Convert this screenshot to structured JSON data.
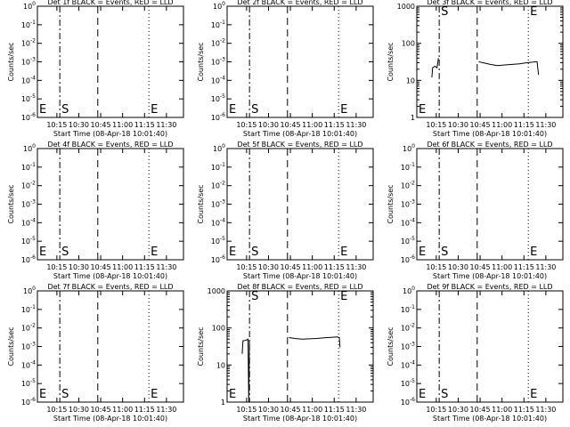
{
  "figure": {
    "xlabel": "Start Time (08-Apr-18 10:01:40)",
    "time_ticks": [
      "10:15",
      "10:30",
      "10:45",
      "11:00",
      "11:15",
      "11:30"
    ],
    "ylabel": "Counts/sec"
  },
  "chart_data": [
    {
      "type": "line",
      "title": "Det 1f BLACK = Events, RED = LLD",
      "xlabel": "Start Time (08-Apr-18 10:01:40)",
      "ylabel": "Counts/sec",
      "yscale": "log",
      "xlim": [
        "10:01:40",
        "11:41:40"
      ],
      "x_ticks": [
        "10:15",
        "10:30",
        "10:45",
        "11:00",
        "11:15",
        "11:30"
      ],
      "y_ticks": [
        "10^0",
        "10^-1",
        "10^-2",
        "10^-3",
        "10^-4",
        "10^-5",
        "10^-6"
      ],
      "markers": [
        {
          "label": "E",
          "time": "10:01:40",
          "style": "solid"
        },
        {
          "label": "S",
          "time": "10:17:00",
          "style": "dashdot"
        },
        {
          "label": "",
          "time": "10:43:00",
          "style": "dashed"
        },
        {
          "label": "E",
          "time": "11:18:00",
          "style": "dotted"
        },
        {
          "label": "",
          "time": "11:41:40",
          "style": "dotted"
        }
      ],
      "series": []
    },
    {
      "type": "line",
      "title": "Det 2f BLACK = Events, RED = LLD",
      "xlabel": "Start Time (08-Apr-18 10:01:40)",
      "ylabel": "Counts/sec",
      "yscale": "log",
      "xlim": [
        "10:01:40",
        "11:41:40"
      ],
      "x_ticks": [
        "10:15",
        "10:30",
        "10:45",
        "11:00",
        "11:15",
        "11:30"
      ],
      "y_ticks": [
        "10^0",
        "10^-1",
        "10^-2",
        "10^-3",
        "10^-4",
        "10^-5",
        "10^-6"
      ],
      "markers": [
        {
          "label": "E",
          "time": "10:01:40",
          "style": "solid"
        },
        {
          "label": "S",
          "time": "10:17:00",
          "style": "dashdot"
        },
        {
          "label": "",
          "time": "10:43:00",
          "style": "dashed"
        },
        {
          "label": "E",
          "time": "11:18:00",
          "style": "dotted"
        },
        {
          "label": "",
          "time": "11:41:40",
          "style": "dotted"
        }
      ],
      "series": []
    },
    {
      "type": "line",
      "title": "Det 3f BLACK = Events, RED = LLD",
      "xlabel": "Start Time (08-Apr-18 10:01:40)",
      "ylabel": "Counts/sec",
      "yscale": "log",
      "xlim": [
        "10:01:40",
        "11:41:40"
      ],
      "x_ticks": [
        "10:15",
        "10:30",
        "10:45",
        "11:00",
        "11:15",
        "11:30"
      ],
      "y_ticks": [
        "1000",
        "100",
        "10",
        "1"
      ],
      "markers": [
        {
          "label": "E",
          "time": "10:01:40",
          "style": "solid"
        },
        {
          "label": "S",
          "time": "10:17:00",
          "style": "dashdot"
        },
        {
          "label": "",
          "time": "10:43:00",
          "style": "dashed"
        },
        {
          "label": "E",
          "time": "11:18:00",
          "style": "dotted"
        },
        {
          "label": "",
          "time": "11:41:40",
          "style": "dotted"
        }
      ],
      "series": [
        {
          "color": "#000000",
          "x": [
            "10:12:00",
            "10:12:30",
            "10:14:00",
            "10:15:30",
            "10:16:30"
          ],
          "y": [
            12,
            22,
            24,
            22,
            40
          ]
        },
        {
          "color": "#000000",
          "x": [
            "10:44:00",
            "10:47:00",
            "10:52:00",
            "10:57:00",
            "11:02:00",
            "11:07:00",
            "11:12:00",
            "11:17:00",
            "11:21:00",
            "11:24:00",
            "11:25:00"
          ],
          "y": [
            32,
            30,
            27,
            25,
            26,
            27,
            28,
            30,
            31,
            32,
            14
          ]
        }
      ]
    },
    {
      "type": "line",
      "title": "Det 4f BLACK = Events, RED = LLD",
      "xlabel": "Start Time (08-Apr-18 10:01:40)",
      "ylabel": "Counts/sec",
      "yscale": "log",
      "xlim": [
        "10:01:40",
        "11:41:40"
      ],
      "x_ticks": [
        "10:15",
        "10:30",
        "10:45",
        "11:00",
        "11:15",
        "11:30"
      ],
      "y_ticks": [
        "10^0",
        "10^-1",
        "10^-2",
        "10^-3",
        "10^-4",
        "10^-5",
        "10^-6"
      ],
      "markers": [
        {
          "label": "E",
          "time": "10:01:40",
          "style": "solid"
        },
        {
          "label": "S",
          "time": "10:17:00",
          "style": "dashdot"
        },
        {
          "label": "",
          "time": "10:43:00",
          "style": "dashed"
        },
        {
          "label": "E",
          "time": "11:18:00",
          "style": "dotted"
        },
        {
          "label": "",
          "time": "11:41:40",
          "style": "dotted"
        }
      ],
      "series": []
    },
    {
      "type": "line",
      "title": "Det 5f BLACK = Events, RED = LLD",
      "xlabel": "Start Time (08-Apr-18 10:01:40)",
      "ylabel": "Counts/sec",
      "yscale": "log",
      "xlim": [
        "10:01:40",
        "11:41:40"
      ],
      "x_ticks": [
        "10:15",
        "10:30",
        "10:45",
        "11:00",
        "11:15",
        "11:30"
      ],
      "y_ticks": [
        "10^0",
        "10^-1",
        "10^-2",
        "10^-3",
        "10^-4",
        "10^-5",
        "10^-6"
      ],
      "markers": [
        {
          "label": "E",
          "time": "10:01:40",
          "style": "solid"
        },
        {
          "label": "S",
          "time": "10:17:00",
          "style": "dashdot"
        },
        {
          "label": "",
          "time": "10:43:00",
          "style": "dashed"
        },
        {
          "label": "E",
          "time": "11:18:00",
          "style": "dotted"
        },
        {
          "label": "",
          "time": "11:41:40",
          "style": "dotted"
        }
      ],
      "series": []
    },
    {
      "type": "line",
      "title": "Det 6f BLACK = Events, RED = LLD",
      "xlabel": "Start Time (08-Apr-18 10:01:40)",
      "ylabel": "Counts/sec",
      "yscale": "log",
      "xlim": [
        "10:01:40",
        "11:41:40"
      ],
      "x_ticks": [
        "10:15",
        "10:30",
        "10:45",
        "11:00",
        "11:15",
        "11:30"
      ],
      "y_ticks": [
        "10^0",
        "10^-1",
        "10^-2",
        "10^-3",
        "10^-4",
        "10^-5",
        "10^-6"
      ],
      "markers": [
        {
          "label": "E",
          "time": "10:01:40",
          "style": "solid"
        },
        {
          "label": "S",
          "time": "10:17:00",
          "style": "dashdot"
        },
        {
          "label": "",
          "time": "10:43:00",
          "style": "dashed"
        },
        {
          "label": "E",
          "time": "11:18:00",
          "style": "dotted"
        },
        {
          "label": "",
          "time": "11:41:40",
          "style": "dotted"
        }
      ],
      "series": []
    },
    {
      "type": "line",
      "title": "Det 7f BLACK = Events, RED = LLD",
      "xlabel": "Start Time (08-Apr-18 10:01:40)",
      "ylabel": "Counts/sec",
      "yscale": "log",
      "xlim": [
        "10:01:40",
        "11:41:40"
      ],
      "x_ticks": [
        "10:15",
        "10:30",
        "10:45",
        "11:00",
        "11:15",
        "11:30"
      ],
      "y_ticks": [
        "10^0",
        "10^-1",
        "10^-2",
        "10^-3",
        "10^-4",
        "10^-5",
        "10^-6"
      ],
      "markers": [
        {
          "label": "E",
          "time": "10:01:40",
          "style": "solid"
        },
        {
          "label": "S",
          "time": "10:17:00",
          "style": "dashdot"
        },
        {
          "label": "",
          "time": "10:43:00",
          "style": "dashed"
        },
        {
          "label": "E",
          "time": "11:18:00",
          "style": "dotted"
        },
        {
          "label": "",
          "time": "11:41:40",
          "style": "dotted"
        }
      ],
      "series": []
    },
    {
      "type": "line",
      "title": "Det 8f BLACK = Events, RED = LLD",
      "xlabel": "Start Time (08-Apr-18 10:01:40)",
      "ylabel": "Counts/sec",
      "yscale": "log",
      "xlim": [
        "10:01:40",
        "11:41:40"
      ],
      "x_ticks": [
        "10:15",
        "10:30",
        "10:45",
        "11:00",
        "11:15",
        "11:30"
      ],
      "y_ticks": [
        "1000",
        "100",
        "10",
        "1"
      ],
      "markers": [
        {
          "label": "E",
          "time": "10:01:40",
          "style": "solid"
        },
        {
          "label": "S",
          "time": "10:17:00",
          "style": "dashdot"
        },
        {
          "label": "",
          "time": "10:43:00",
          "style": "dashed"
        },
        {
          "label": "E",
          "time": "11:18:00",
          "style": "dotted"
        },
        {
          "label": "",
          "time": "11:41:40",
          "style": "dotted"
        }
      ],
      "series": [
        {
          "color": "#000000",
          "x": [
            "10:12:00",
            "10:12:30",
            "10:14:00",
            "10:15:30",
            "10:16:00",
            "10:16:30",
            "10:17:00"
          ],
          "y": [
            20,
            45,
            46,
            48,
            50,
            1,
            48
          ]
        },
        {
          "color": "#000000",
          "x": [
            "10:44:00",
            "10:48:00",
            "10:53:00",
            "10:58:00",
            "11:03:00",
            "11:08:00",
            "11:13:00",
            "11:17:00",
            "11:18:30",
            "11:19:00"
          ],
          "y": [
            55,
            52,
            50,
            51,
            52,
            54,
            56,
            57,
            55,
            30
          ]
        }
      ]
    },
    {
      "type": "line",
      "title": "Det 9f BLACK = Events, RED = LLD",
      "xlabel": "Start Time (08-Apr-18 10:01:40)",
      "ylabel": "Counts/sec",
      "yscale": "log",
      "xlim": [
        "10:01:40",
        "11:41:40"
      ],
      "x_ticks": [
        "10:15",
        "10:30",
        "10:45",
        "11:00",
        "11:15",
        "11:30"
      ],
      "y_ticks": [
        "10^0",
        "10^-1",
        "10^-2",
        "10^-3",
        "10^-4",
        "10^-5",
        "10^-6"
      ],
      "markers": [
        {
          "label": "E",
          "time": "10:01:40",
          "style": "solid"
        },
        {
          "label": "S",
          "time": "10:17:00",
          "style": "dashdot"
        },
        {
          "label": "",
          "time": "10:43:00",
          "style": "dashed"
        },
        {
          "label": "E",
          "time": "11:18:00",
          "style": "dotted"
        },
        {
          "label": "",
          "time": "11:41:40",
          "style": "dotted"
        }
      ],
      "series": []
    }
  ]
}
